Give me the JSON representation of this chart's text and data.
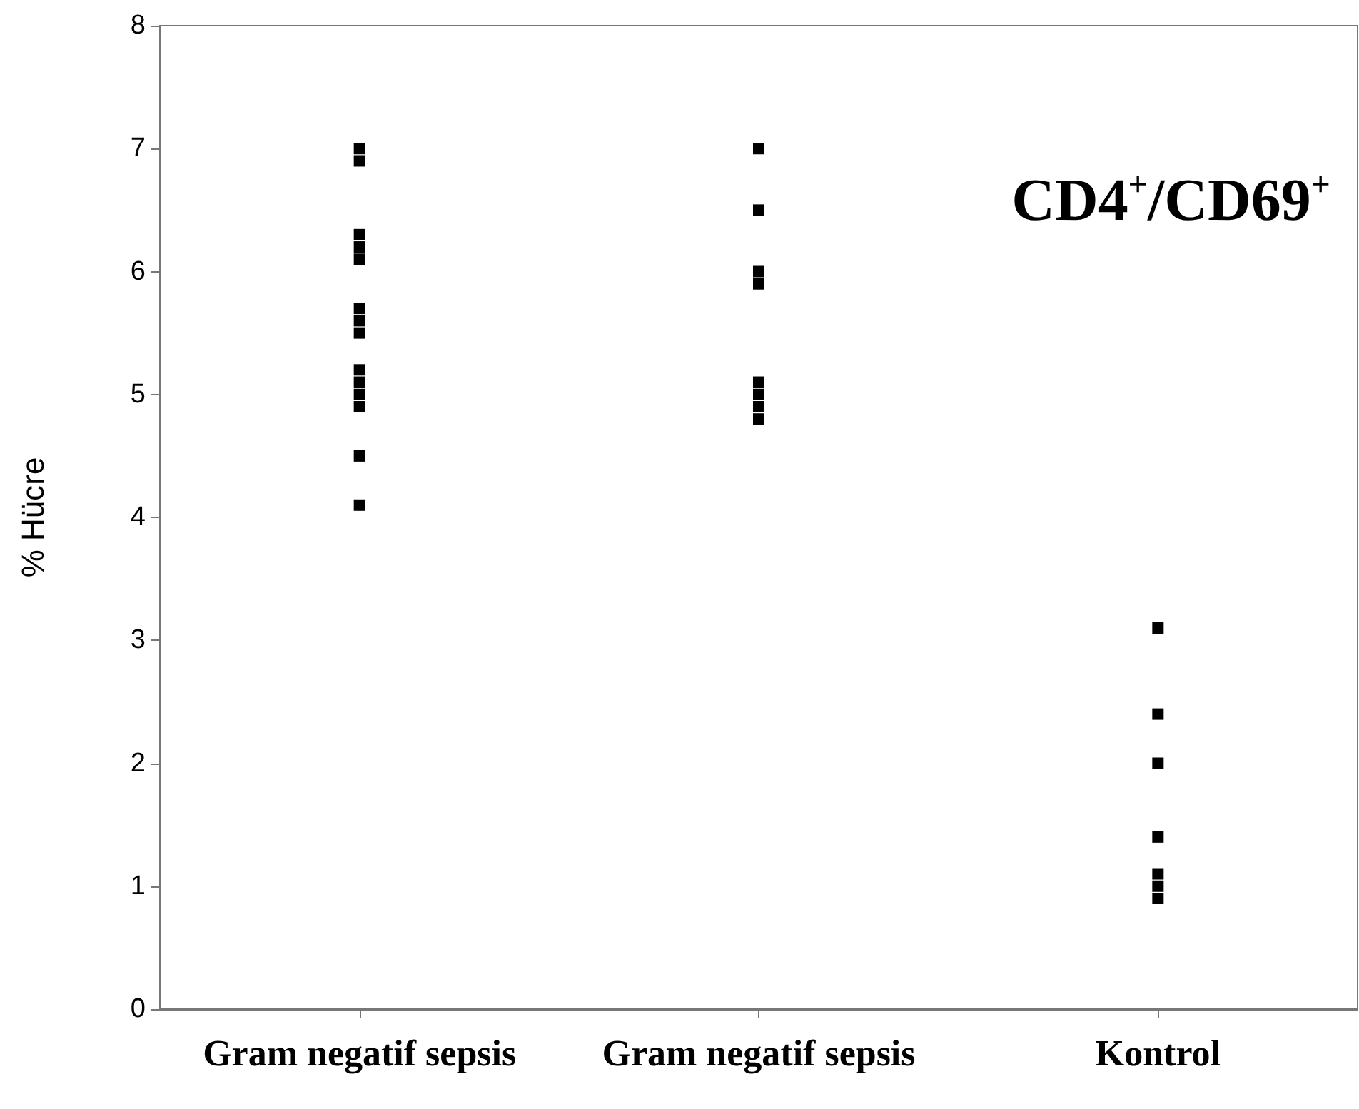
{
  "chart_data": {
    "type": "scatter",
    "ylabel": "% Hücre",
    "annotations": [
      "CD4$^{+}$/CD69$^{+}$"
    ],
    "categories": [
      "Gram negatif sepsis",
      "Gram negatif sepsis",
      "Kontrol"
    ],
    "series": [
      {
        "color": "#000000",
        "values": [
          7.0,
          7.0,
          3.1
        ]
      },
      {
        "color": "#000000",
        "values": [
          6.9,
          6.5,
          2.4
        ]
      },
      {
        "color": "#000000",
        "values": [
          6.3,
          6.0,
          2.0
        ]
      },
      {
        "color": "#000000",
        "values": [
          6.2,
          5.9,
          1.4
        ]
      },
      {
        "color": "#000000",
        "values": [
          6.1,
          5.1,
          1.1
        ]
      },
      {
        "color": "#000000",
        "values": [
          5.7,
          5.0,
          1.0
        ]
      },
      {
        "color": "#000000",
        "values": [
          5.6,
          4.9,
          0.9
        ]
      },
      {
        "color": "#000000",
        "values": [
          5.5,
          4.8,
          null
        ]
      },
      {
        "color": "#000000",
        "values": [
          5.2,
          null,
          null
        ]
      },
      {
        "color": "#000000",
        "values": [
          5.1,
          null,
          null
        ]
      },
      {
        "color": "#000000",
        "values": [
          5.0,
          null,
          null
        ]
      },
      {
        "color": "#000000",
        "values": [
          4.9,
          null,
          null
        ]
      },
      {
        "color": "#000000",
        "values": [
          4.5,
          null,
          null
        ]
      },
      {
        "color": "#000000",
        "values": [
          4.1,
          null,
          null
        ]
      }
    ],
    "ylim": [
      0,
      8
    ],
    "yticks": [
      0,
      1,
      2,
      3,
      4,
      5,
      6,
      7,
      8
    ],
    "marker": "square",
    "grid": false
  }
}
